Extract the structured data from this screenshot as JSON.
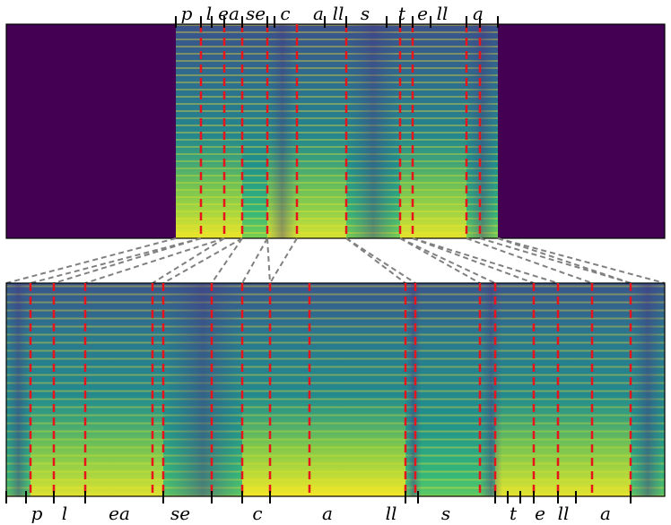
{
  "figure": {
    "top_panel": {
      "labels": [
        "p",
        "l",
        "ea",
        "se",
        "c",
        "a",
        "ll",
        "s",
        "t",
        "e",
        "ll",
        "a"
      ]
    },
    "bottom_panel": {
      "labels": [
        "p",
        "l",
        "ea",
        "se",
        "c",
        "a",
        "ll",
        "s",
        "t",
        "e",
        "ll",
        "a"
      ]
    }
  },
  "colors": {
    "padding": "#440154",
    "boundary_line": "#e8141b",
    "connector_line": "#808080",
    "viridis_low": "#3b528b",
    "viridis_mid": "#21918c",
    "viridis_high": "#fde725"
  }
}
